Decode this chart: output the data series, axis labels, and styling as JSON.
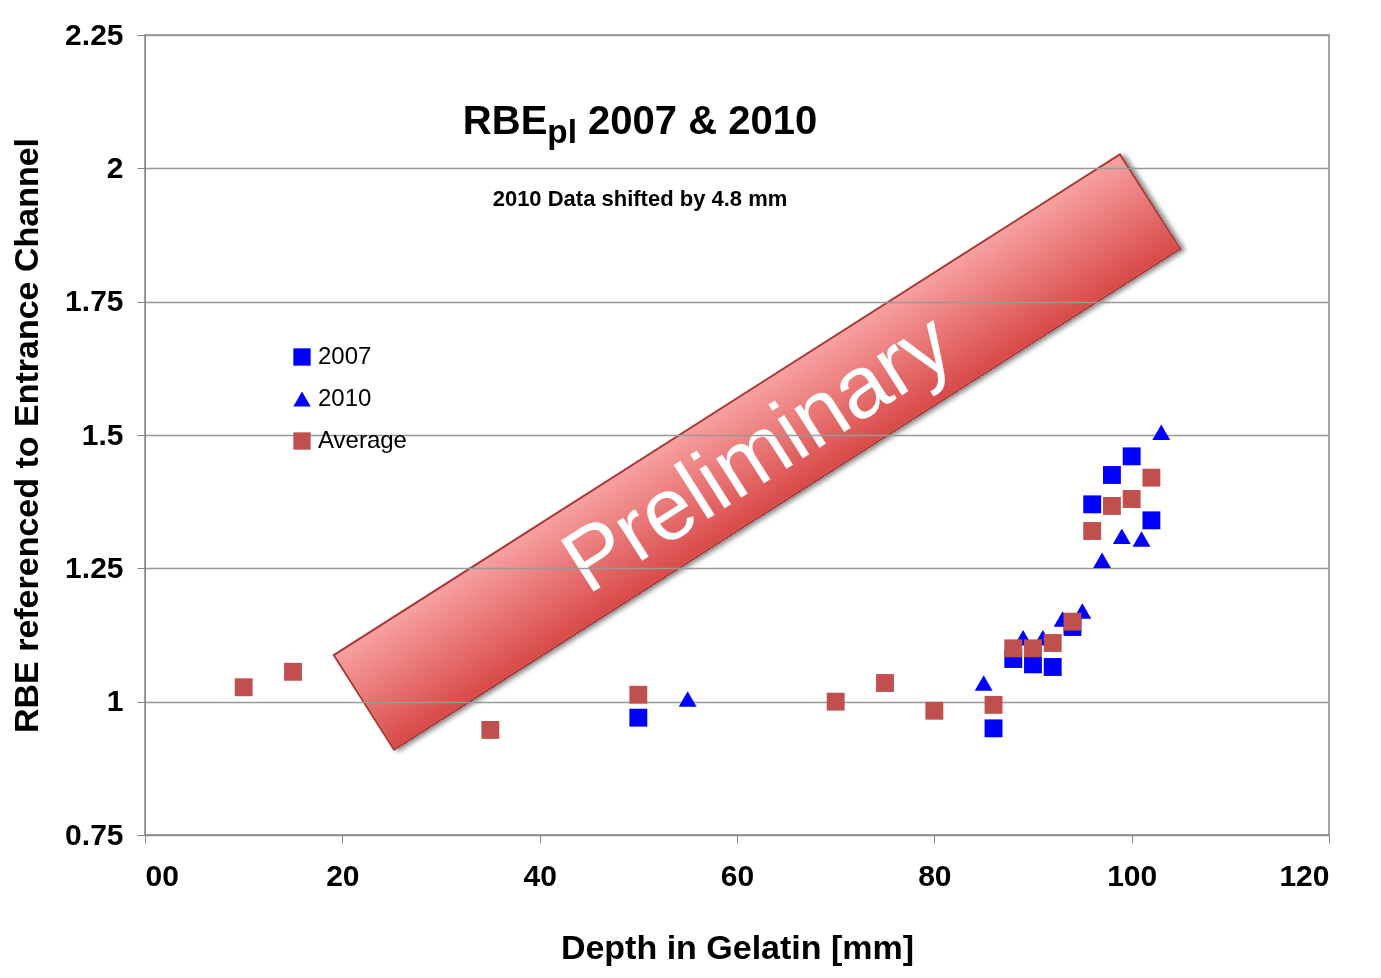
{
  "chart_data": {
    "type": "scatter",
    "title": "RBE$_{pl}$ 2007 & 2010",
    "subtitle": "2010 Data shifted by 4.8 mm",
    "xlabel": "Depth in Gelatin [mm]",
    "ylabel": "RBE referenced to Entrance Channel",
    "annotations": [
      "Preliminary"
    ],
    "xlim": [
      0,
      120
    ],
    "xticks": [
      {
        "value": 0,
        "label": "00"
      },
      20,
      40,
      60,
      80,
      100,
      120
    ],
    "ylim": [
      0.75,
      2.25
    ],
    "yticks": [
      0.75,
      1,
      1.25,
      1.5,
      1.75,
      2,
      2.25
    ],
    "grid": "y",
    "legend": "left",
    "series": [
      {
        "name": "2007",
        "color": "#0000ff",
        "marker": "square",
        "x": [
          50,
          86,
          88,
          90,
          92,
          94,
          96,
          98,
          100,
          102
        ],
        "values": [
          0.97,
          0.95,
          1.08,
          1.07,
          1.065,
          1.14,
          1.37,
          1.425,
          1.46,
          1.34
        ]
      },
      {
        "name": "2010",
        "color": "#0000ff",
        "marker": "triangle",
        "x": [
          55,
          85,
          89,
          91,
          93,
          95,
          97,
          99,
          101,
          103
        ],
        "values": [
          1.005,
          1.035,
          1.12,
          1.12,
          1.155,
          1.17,
          1.265,
          1.31,
          1.305,
          1.505
        ]
      },
      {
        "name": "Average",
        "color": "#c0504d",
        "marker": "square",
        "x": [
          10,
          15,
          35,
          50,
          70,
          75,
          80,
          86,
          88,
          90,
          92,
          94,
          96,
          98,
          100,
          102
        ],
        "values": [
          1.027,
          1.056,
          0.947,
          1.013,
          1.0,
          1.035,
          0.983,
          0.994,
          1.1,
          1.1,
          1.11,
          1.15,
          1.32,
          1.367,
          1.38,
          1.42
        ]
      }
    ]
  }
}
